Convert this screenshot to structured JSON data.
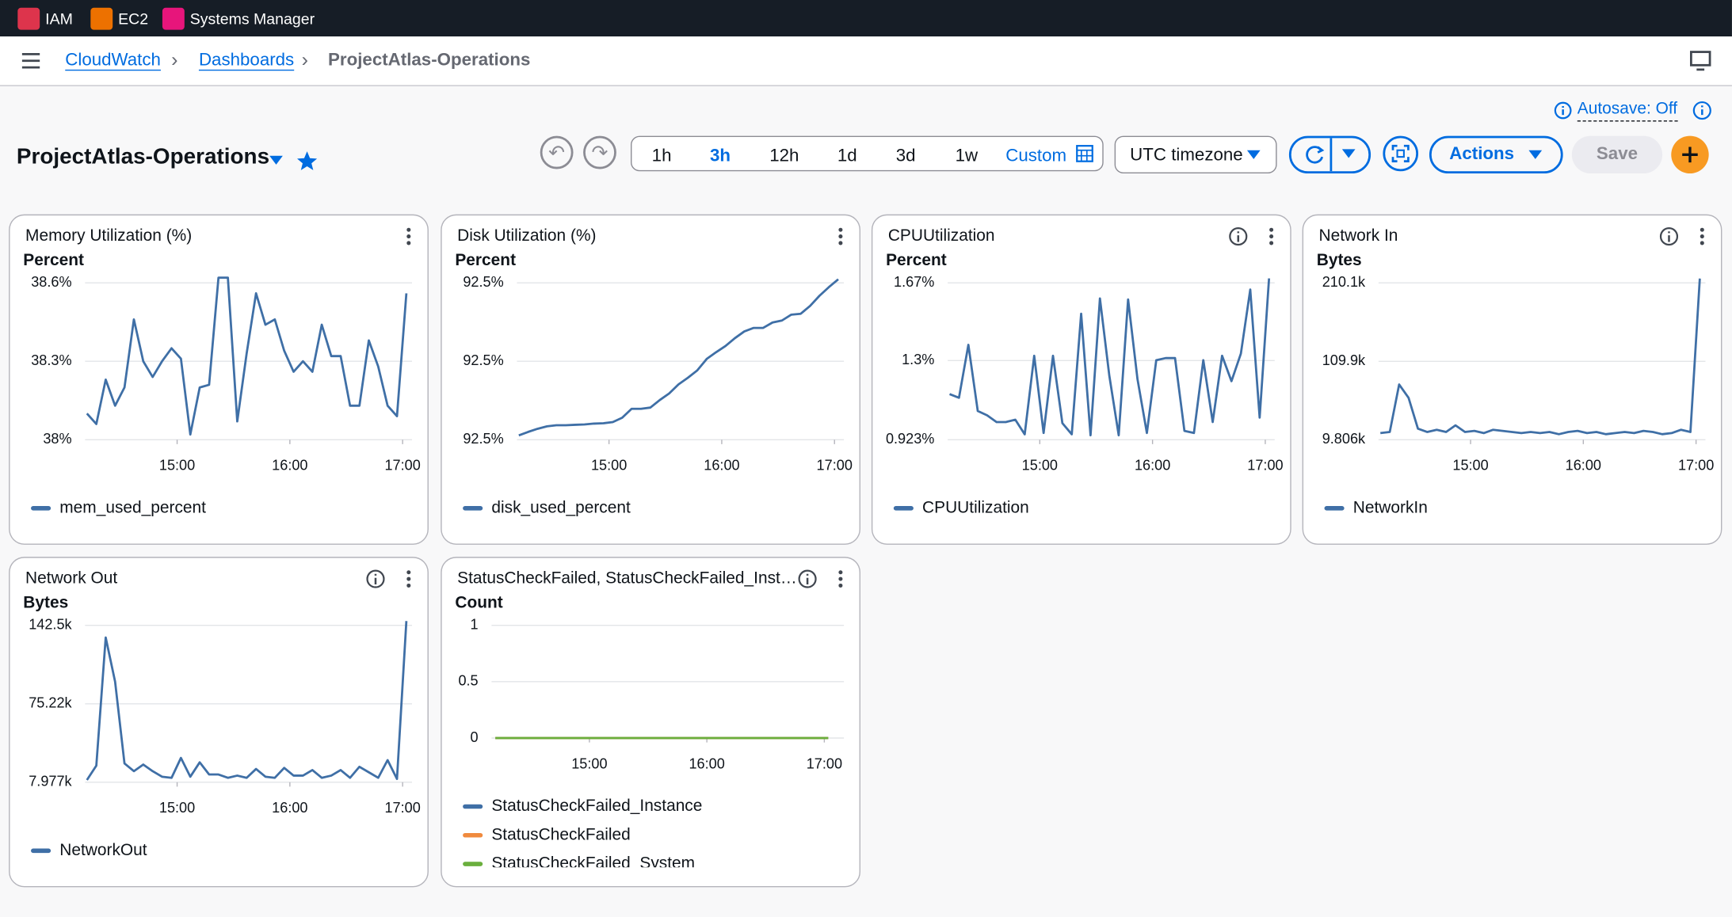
{
  "nav": {
    "services": [
      "IAM",
      "EC2",
      "Systems Manager"
    ]
  },
  "breadcrumbs": [
    "CloudWatch",
    "Dashboards",
    "ProjectAtlas-Operations"
  ],
  "autosave": "Autosave: Off",
  "dashboard": {
    "title": "ProjectAtlas-Operations",
    "time_ranges": [
      "1h",
      "3h",
      "12h",
      "1d",
      "3d",
      "1w",
      "Custom"
    ],
    "selected_range": "3h",
    "timezone": "UTC timezone",
    "actions": "Actions",
    "save": "Save"
  },
  "widgets": [
    {
      "type": "line",
      "title": "Memory Utilization (%)",
      "unit": "Percent",
      "info_icon": false,
      "x": [
        "14:12",
        "14:17",
        "14:22",
        "14:27",
        "14:32",
        "14:37",
        "14:42",
        "14:47",
        "14:52",
        "14:57",
        "15:02",
        "15:07",
        "15:12",
        "15:17",
        "15:22",
        "15:27",
        "15:32",
        "15:37",
        "15:42",
        "15:47",
        "15:52",
        "15:57",
        "16:02",
        "16:07",
        "16:12",
        "16:17",
        "16:22",
        "16:27",
        "16:32",
        "16:37",
        "16:42",
        "16:47",
        "16:52",
        "16:57",
        "17:02"
      ],
      "xlim": [
        "14:11",
        "17:05"
      ],
      "xticks": [
        "15:00",
        "16:00",
        "17:00"
      ],
      "ylim": [
        38.0,
        38.6
      ],
      "yticks": [
        {
          "value": 38.6,
          "label": "38.6%"
        },
        {
          "value": 38.3,
          "label": "38.3%"
        },
        {
          "value": 38.0,
          "label": "38%"
        }
      ],
      "series": [
        {
          "name": "mem_used_percent",
          "color": "#3f6fa6",
          "values": [
            38.1,
            38.06,
            38.23,
            38.13,
            38.2,
            38.46,
            38.3,
            38.24,
            38.3,
            38.35,
            38.31,
            38.02,
            38.2,
            38.21,
            38.62,
            38.62,
            38.07,
            38.33,
            38.56,
            38.44,
            38.46,
            38.34,
            38.26,
            38.3,
            38.26,
            38.44,
            38.32,
            38.32,
            38.13,
            38.13,
            38.38,
            38.28,
            38.13,
            38.09,
            38.56
          ]
        }
      ]
    },
    {
      "type": "line",
      "title": "Disk Utilization (%)",
      "unit": "Percent",
      "info_icon": false,
      "x": [
        "14:12",
        "14:17",
        "14:22",
        "14:27",
        "14:32",
        "14:37",
        "14:42",
        "14:47",
        "14:52",
        "14:57",
        "15:02",
        "15:07",
        "15:12",
        "15:17",
        "15:22",
        "15:27",
        "15:32",
        "15:37",
        "15:42",
        "15:47",
        "15:52",
        "15:57",
        "16:02",
        "16:07",
        "16:12",
        "16:17",
        "16:22",
        "16:27",
        "16:32",
        "16:37",
        "16:42",
        "16:47",
        "16:52",
        "16:57",
        "17:02"
      ],
      "xlim": [
        "14:11",
        "17:05"
      ],
      "xticks": [
        "15:00",
        "16:00",
        "17:00"
      ],
      "ylim": [
        92.48,
        92.52
      ],
      "yticks": [
        {
          "value": 92.52,
          "label": "92.5%"
        },
        {
          "value": 92.5,
          "label": "92.5%"
        },
        {
          "value": 92.48,
          "label": "92.5%"
        }
      ],
      "series": [
        {
          "name": "disk_used_percent",
          "color": "#3f6fa6",
          "values": [
            92.4811,
            92.482,
            92.4828,
            92.4834,
            92.4837,
            92.4837,
            92.4838,
            92.4839,
            92.4841,
            92.4842,
            92.4845,
            92.4856,
            92.4879,
            92.4879,
            92.4882,
            92.4901,
            92.4918,
            92.4941,
            92.4958,
            92.4977,
            92.5006,
            92.5023,
            92.5039,
            92.5059,
            92.5076,
            92.5085,
            92.5085,
            92.5099,
            92.5104,
            92.5119,
            92.5121,
            92.5141,
            92.5167,
            92.5189,
            92.5209
          ]
        }
      ]
    },
    {
      "type": "line",
      "title": "CPUUtilization",
      "unit": "Percent",
      "info_icon": true,
      "x": [
        "14:12",
        "14:17",
        "14:22",
        "14:27",
        "14:32",
        "14:37",
        "14:42",
        "14:47",
        "14:52",
        "14:57",
        "15:02",
        "15:07",
        "15:12",
        "15:17",
        "15:22",
        "15:27",
        "15:32",
        "15:37",
        "15:42",
        "15:47",
        "15:52",
        "15:57",
        "16:02",
        "16:07",
        "16:12",
        "16:17",
        "16:22",
        "16:27",
        "16:32",
        "16:37",
        "16:42",
        "16:47",
        "16:52",
        "16:57",
        "17:02"
      ],
      "xlim": [
        "14:11",
        "17:05"
      ],
      "xticks": [
        "15:00",
        "16:00",
        "17:00"
      ],
      "ylim": [
        0.923,
        1.67
      ],
      "yticks": [
        {
          "value": 1.67,
          "label": "1.67%"
        },
        {
          "value": 1.3,
          "label": "1.3%"
        },
        {
          "value": 0.923,
          "label": "0.923%"
        }
      ],
      "series": [
        {
          "name": "CPUUtilization",
          "color": "#3f6fa6",
          "values": [
            1.14,
            1.123,
            1.375,
            1.06,
            1.039,
            1.007,
            1.007,
            1.018,
            0.949,
            1.323,
            0.955,
            1.323,
            1.002,
            0.949,
            1.523,
            0.944,
            1.596,
            1.228,
            0.944,
            1.591,
            1.212,
            0.955,
            1.302,
            1.312,
            1.312,
            0.965,
            0.955,
            1.302,
            1.007,
            1.323,
            1.202,
            1.333,
            1.638,
            1.028,
            1.691
          ]
        }
      ]
    },
    {
      "type": "line",
      "title": "Network In",
      "unit": "Bytes",
      "info_icon": true,
      "x": [
        "14:12",
        "14:17",
        "14:22",
        "14:27",
        "14:32",
        "14:37",
        "14:42",
        "14:47",
        "14:52",
        "14:57",
        "15:02",
        "15:07",
        "15:12",
        "15:17",
        "15:22",
        "15:27",
        "15:32",
        "15:37",
        "15:42",
        "15:47",
        "15:52",
        "15:57",
        "16:02",
        "16:07",
        "16:12",
        "16:17",
        "16:22",
        "16:27",
        "16:32",
        "16:37",
        "16:42",
        "16:47",
        "16:52",
        "16:57",
        "17:02"
      ],
      "xlim": [
        "14:11",
        "17:05"
      ],
      "xticks": [
        "15:00",
        "16:00",
        "17:00"
      ],
      "ylim": [
        9806,
        210100
      ],
      "yticks": [
        {
          "value": 210100,
          "label": "210.1k"
        },
        {
          "value": 109900,
          "label": "109.9k"
        },
        {
          "value": 9806,
          "label": "9.806k"
        }
      ],
      "series": [
        {
          "name": "NetworkIn",
          "color": "#3f6fa6",
          "values": [
            18266,
            19676,
            80306,
            63386,
            23906,
            19676,
            22496,
            19676,
            28136,
            19676,
            21086,
            18266,
            22496,
            21086,
            19676,
            18266,
            19676,
            18266,
            19676,
            16856,
            19676,
            21086,
            18266,
            19676,
            16856,
            18266,
            19676,
            18266,
            21086,
            19676,
            16856,
            18266,
            22496,
            19676,
            215666
          ]
        }
      ]
    },
    {
      "type": "line",
      "title": "Network Out",
      "unit": "Bytes",
      "info_icon": true,
      "x": [
        "14:12",
        "14:17",
        "14:22",
        "14:27",
        "14:32",
        "14:37",
        "14:42",
        "14:47",
        "14:52",
        "14:57",
        "15:02",
        "15:07",
        "15:12",
        "15:17",
        "15:22",
        "15:27",
        "15:32",
        "15:37",
        "15:42",
        "15:47",
        "15:52",
        "15:57",
        "16:02",
        "16:07",
        "16:12",
        "16:17",
        "16:22",
        "16:27",
        "16:32",
        "16:37",
        "16:42",
        "16:47",
        "16:52",
        "16:57",
        "17:02"
      ],
      "xlim": [
        "14:11",
        "17:05"
      ],
      "xticks": [
        "15:00",
        "16:00",
        "17:00"
      ],
      "ylim": [
        7977,
        142500
      ],
      "yticks": [
        {
          "value": 142500,
          "label": "142.5k"
        },
        {
          "value": 75220,
          "label": "75.22k"
        },
        {
          "value": 7977,
          "label": "7.977k"
        }
      ],
      "series": [
        {
          "name": "NetworkOut",
          "color": "#3f6fa6",
          "values": [
            9871,
            22182,
            132034,
            94154,
            24076,
            17447,
            23129,
            17447,
            12712,
            11765,
            28811,
            12712,
            25023,
            14606,
            14606,
            11765,
            13659,
            11765,
            19341,
            12712,
            11765,
            20288,
            13659,
            13659,
            18394,
            11765,
            13659,
            18394,
            11765,
            21235,
            16500,
            11765,
            26917,
            10818,
            146239
          ]
        }
      ]
    },
    {
      "type": "line",
      "title": "StatusCheckFailed, StatusCheckFailed_Inst…",
      "unit": "Count",
      "info_icon": true,
      "x": [
        "14:12",
        "14:17",
        "14:22",
        "14:27",
        "14:32",
        "14:37",
        "14:42",
        "14:47",
        "14:52",
        "14:57",
        "15:02",
        "15:07",
        "15:12",
        "15:17",
        "15:22",
        "15:27",
        "15:32",
        "15:37",
        "15:42",
        "15:47",
        "15:52",
        "15:57",
        "16:02",
        "16:07",
        "16:12",
        "16:17",
        "16:22",
        "16:27",
        "16:32",
        "16:37",
        "16:42",
        "16:47",
        "16:52",
        "16:57",
        "17:02"
      ],
      "xlim": [
        "14:10",
        "17:10"
      ],
      "xticks": [
        "15:00",
        "16:00",
        "17:00"
      ],
      "ylim": [
        0,
        1
      ],
      "yticks": [
        1,
        0.5,
        0
      ],
      "series": [
        {
          "name": "StatusCheckFailed_Instance",
          "color": "#3f6fa6",
          "values": [
            0,
            0,
            0,
            0,
            0,
            0,
            0,
            0,
            0,
            0,
            0,
            0,
            0,
            0,
            0,
            0,
            0,
            0,
            0,
            0,
            0,
            0,
            0,
            0,
            0,
            0,
            0,
            0,
            0,
            0,
            0,
            0,
            0,
            0,
            0
          ]
        },
        {
          "name": "StatusCheckFailed",
          "color": "#f08a3e",
          "values": [
            0,
            0,
            0,
            0,
            0,
            0,
            0,
            0,
            0,
            0,
            0,
            0,
            0,
            0,
            0,
            0,
            0,
            0,
            0,
            0,
            0,
            0,
            0,
            0,
            0,
            0,
            0,
            0,
            0,
            0,
            0,
            0,
            0,
            0,
            0
          ]
        },
        {
          "name": "StatusCheckFailed_System",
          "color": "#6aaf3d",
          "values": [
            0,
            0,
            0,
            0,
            0,
            0,
            0,
            0,
            0,
            0,
            0,
            0,
            0,
            0,
            0,
            0,
            0,
            0,
            0,
            0,
            0,
            0,
            0,
            0,
            0,
            0,
            0,
            0,
            0,
            0,
            0,
            0,
            0,
            0,
            0
          ]
        }
      ]
    }
  ]
}
